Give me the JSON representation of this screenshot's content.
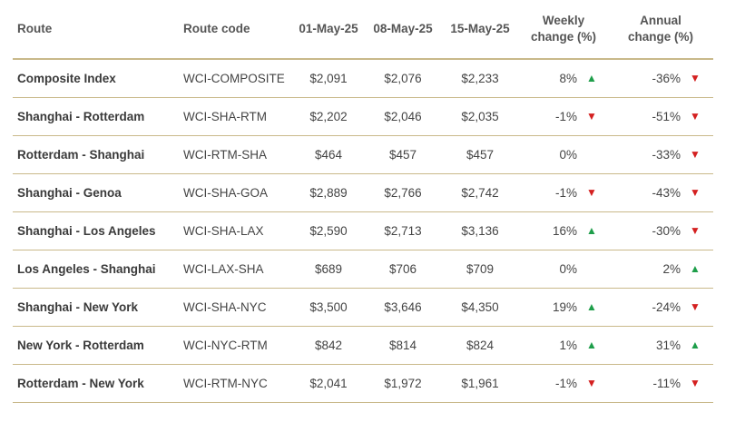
{
  "header": {
    "route": "Route",
    "code": "Route code",
    "p1": "01-May-25",
    "p2": "08-May-25",
    "p3": "15-May-25",
    "weekly_line1": "Weekly",
    "weekly_line2": "change (%)",
    "annual_line1": "Annual",
    "annual_line2": "change (%)"
  },
  "colors": {
    "up": "#1e9e4a",
    "down": "#d42020",
    "rule": "#c9b98a"
  },
  "rows": [
    {
      "route": "Composite Index",
      "code": "WCI-COMPOSITE",
      "p1": "$2,091",
      "p2": "$2,076",
      "p3": "$2,233",
      "weekly": "8%",
      "weekly_dir": "up",
      "annual": "-36%",
      "annual_dir": "down"
    },
    {
      "route": "Shanghai - Rotterdam",
      "code": "WCI-SHA-RTM",
      "p1": "$2,202",
      "p2": "$2,046",
      "p3": "$2,035",
      "weekly": "-1%",
      "weekly_dir": "down",
      "annual": "-51%",
      "annual_dir": "down"
    },
    {
      "route": "Rotterdam - Shanghai",
      "code": "WCI-RTM-SHA",
      "p1": "$464",
      "p2": "$457",
      "p3": "$457",
      "weekly": "0%",
      "weekly_dir": "none",
      "annual": "-33%",
      "annual_dir": "down"
    },
    {
      "route": "Shanghai - Genoa",
      "code": "WCI-SHA-GOA",
      "p1": "$2,889",
      "p2": "$2,766",
      "p3": "$2,742",
      "weekly": "-1%",
      "weekly_dir": "down",
      "annual": "-43%",
      "annual_dir": "down"
    },
    {
      "route": "Shanghai - Los Angeles",
      "code": "WCI-SHA-LAX",
      "p1": "$2,590",
      "p2": "$2,713",
      "p3": "$3,136",
      "weekly": "16%",
      "weekly_dir": "up",
      "annual": "-30%",
      "annual_dir": "down"
    },
    {
      "route": "Los Angeles - Shanghai",
      "code": "WCI-LAX-SHA",
      "p1": "$689",
      "p2": "$706",
      "p3": "$709",
      "weekly": "0%",
      "weekly_dir": "none",
      "annual": "2%",
      "annual_dir": "up"
    },
    {
      "route": "Shanghai - New York",
      "code": "WCI-SHA-NYC",
      "p1": "$3,500",
      "p2": "$3,646",
      "p3": "$4,350",
      "weekly": "19%",
      "weekly_dir": "up",
      "annual": "-24%",
      "annual_dir": "down"
    },
    {
      "route": "New York - Rotterdam",
      "code": "WCI-NYC-RTM",
      "p1": "$842",
      "p2": "$814",
      "p3": "$824",
      "weekly": "1%",
      "weekly_dir": "up",
      "annual": "31%",
      "annual_dir": "up"
    },
    {
      "route": "Rotterdam - New York",
      "code": "WCI-RTM-NYC",
      "p1": "$2,041",
      "p2": "$1,972",
      "p3": "$1,961",
      "weekly": "-1%",
      "weekly_dir": "down",
      "annual": "-11%",
      "annual_dir": "down"
    }
  ]
}
